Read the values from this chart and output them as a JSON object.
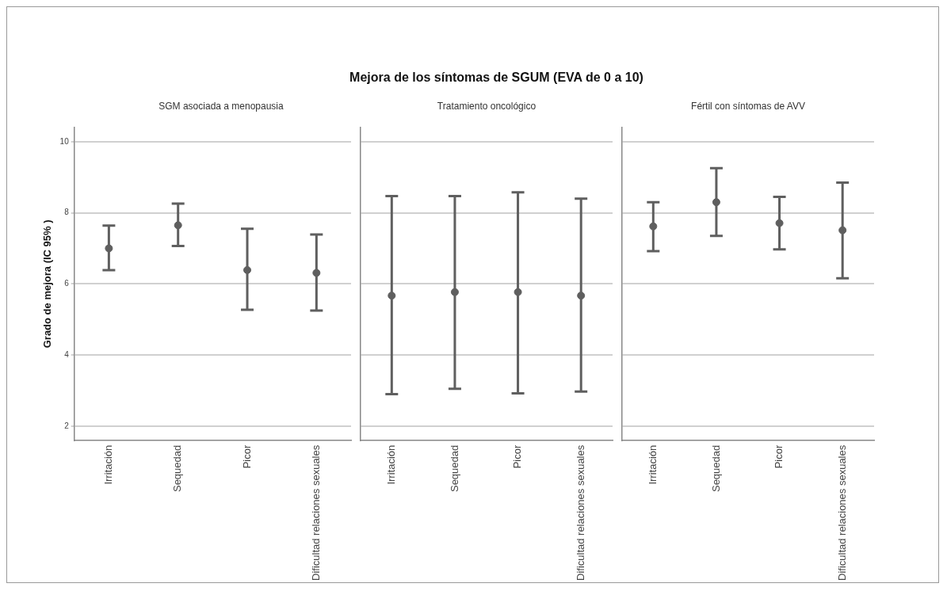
{
  "chart_data": [
    {
      "type": "other",
      "title": "Mejora de los síntomas de SGUM (EVA de 0 a 10)"
    },
    {
      "type": "scatter",
      "subtitle": "SGM asociada a menopausia",
      "ylabel": "Grado de mejora (IC 95% )",
      "categories": [
        "Irritación",
        "Sequedad",
        "Picor",
        "Dificultad relaciones sexuales"
      ],
      "values": [
        7.0,
        7.65,
        6.39,
        6.31
      ],
      "errors": [
        [
          6.39,
          7.64
        ],
        [
          7.07,
          8.26
        ],
        [
          5.27,
          7.55
        ],
        [
          5.25,
          7.39
        ]
      ],
      "color": "#5f5f5f",
      "marker": "circle",
      "ylim": [
        1.6,
        10.4
      ],
      "yticks": [
        2,
        4,
        6,
        8,
        10
      ],
      "grid": "y"
    },
    {
      "type": "scatter",
      "subtitle": "Tratamiento oncológico",
      "categories": [
        "Irritación",
        "Sequedad",
        "Picor",
        "Dificultad relaciones sexuales"
      ],
      "values": [
        5.67,
        5.77,
        5.77,
        5.67
      ],
      "errors": [
        [
          2.9,
          8.47
        ],
        [
          3.05,
          8.47
        ],
        [
          2.92,
          8.58
        ],
        [
          2.97,
          8.4
        ]
      ],
      "color": "#5f5f5f",
      "marker": "circle",
      "ylim": [
        1.6,
        10.4
      ],
      "yticks": [
        2,
        4,
        6,
        8,
        10
      ],
      "grid": "y",
      "tick_labels": "x"
    },
    {
      "type": "scatter",
      "subtitle": "Fértil con síntomas de AVV",
      "categories": [
        "Irritación",
        "Sequedad",
        "Picor",
        "Dificultad relaciones sexuales"
      ],
      "values": [
        7.62,
        8.3,
        7.71,
        7.51
      ],
      "errors": [
        [
          6.92,
          8.3
        ],
        [
          7.35,
          9.26
        ],
        [
          6.97,
          8.45
        ],
        [
          6.16,
          8.85
        ]
      ],
      "color": "#5f5f5f",
      "marker": "circle",
      "ylim": [
        1.6,
        10.4
      ],
      "yticks": [
        2,
        4,
        6,
        8,
        10
      ],
      "grid": "y",
      "tick_labels": "x"
    }
  ]
}
